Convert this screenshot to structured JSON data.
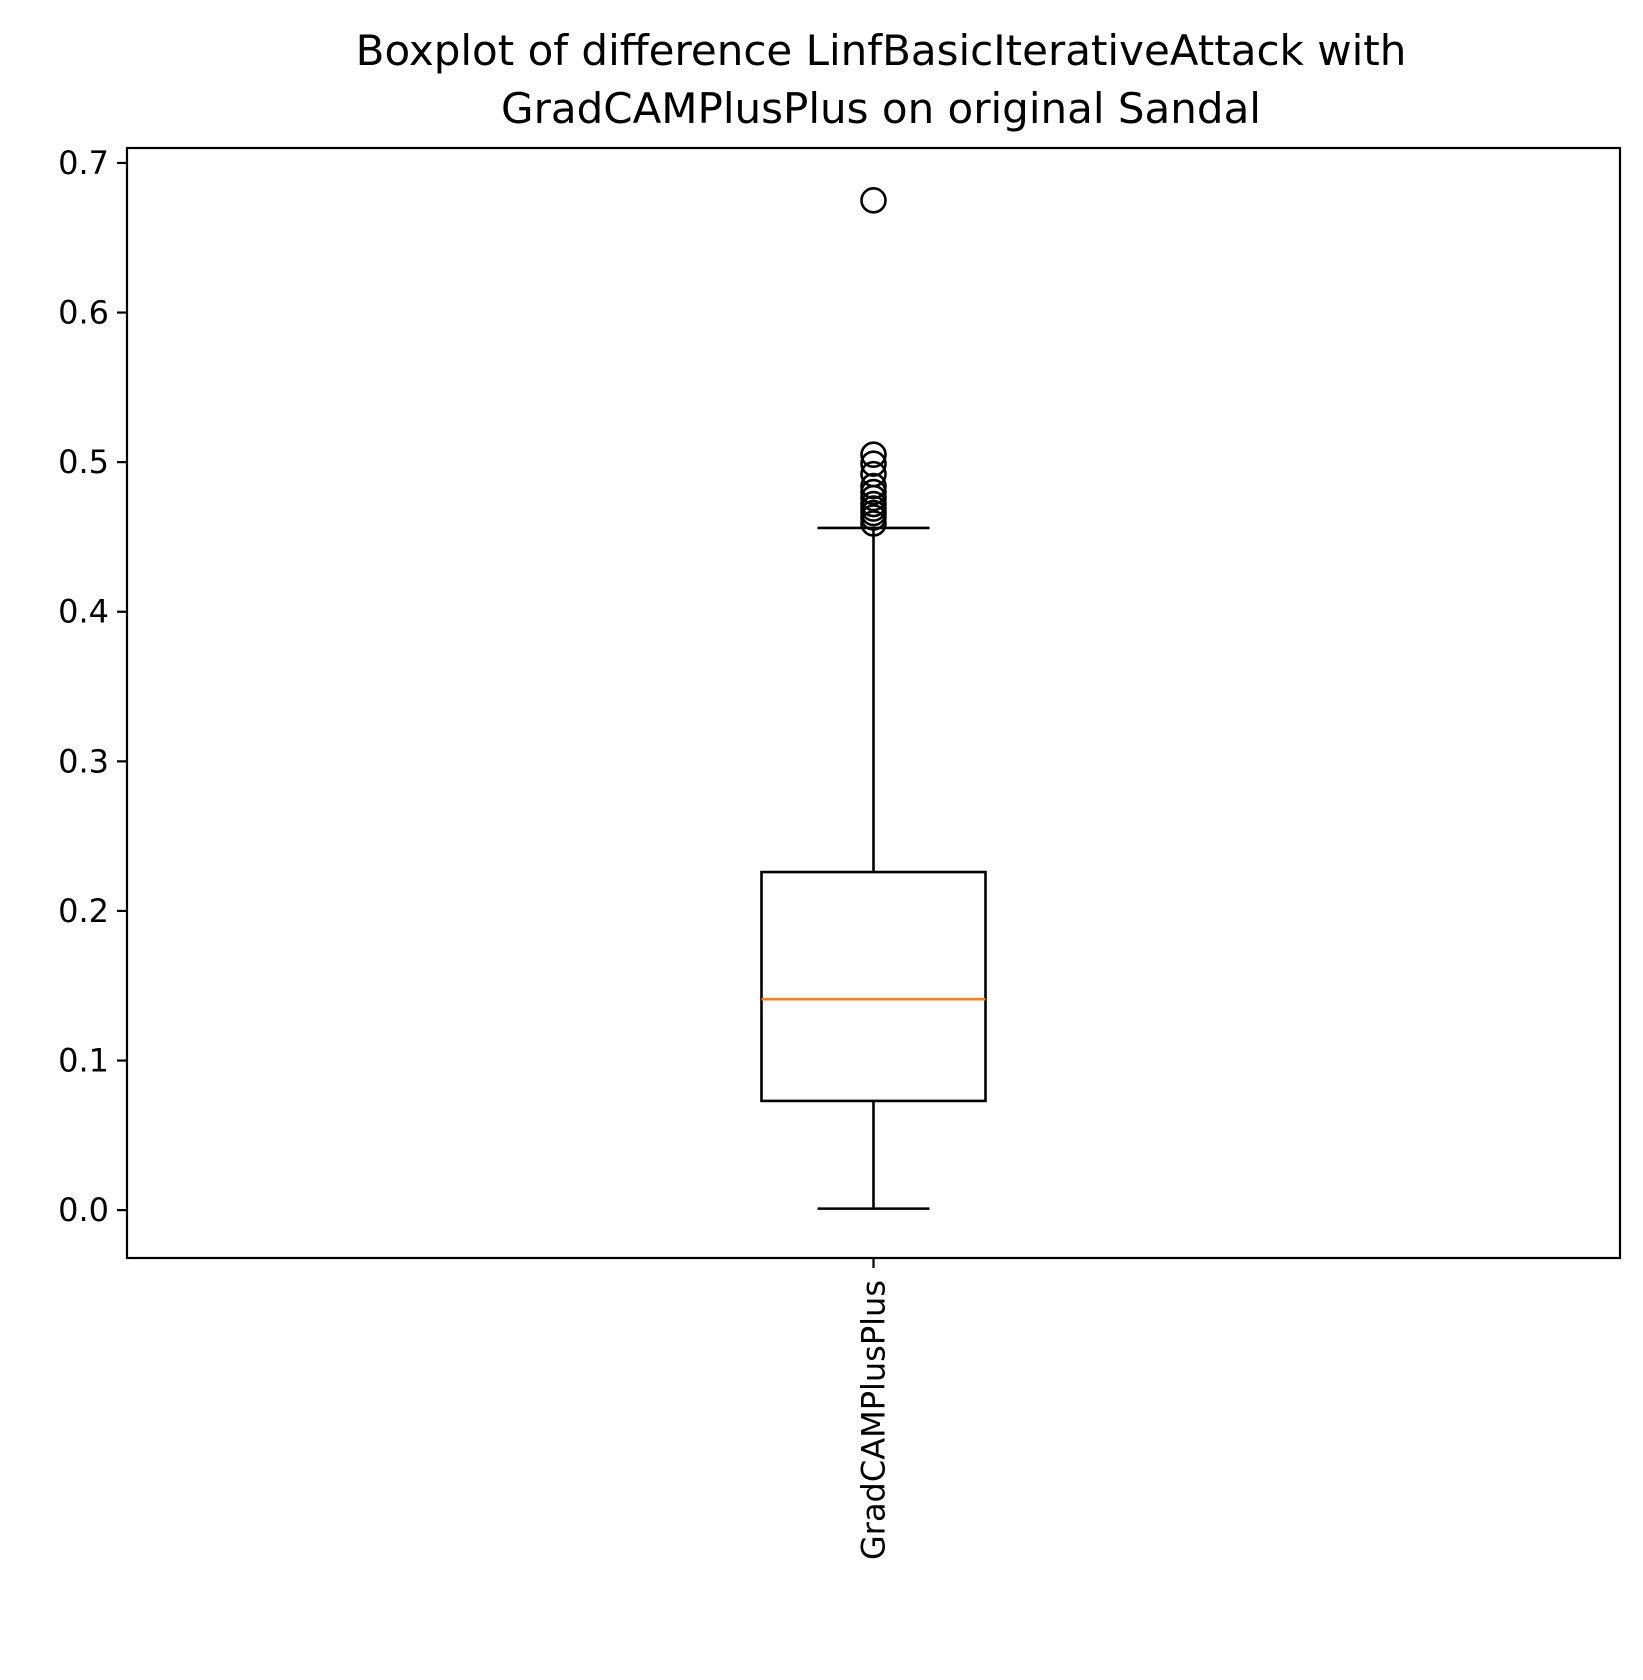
{
  "chart_data": {
    "type": "box",
    "title_lines": [
      "Boxplot of difference LinfBasicIterativeAttack with",
      "GradCAMPlusPlus on original Sandal"
    ],
    "xlabel": "",
    "ylabel": "",
    "categories": [
      "GradCAMPlusPlus"
    ],
    "yticks": [
      "0.0",
      "0.1",
      "0.2",
      "0.3",
      "0.4",
      "0.5",
      "0.6",
      "0.7"
    ],
    "ylim": [
      -0.032,
      0.71
    ],
    "grid": false,
    "boxes": [
      {
        "category": "GradCAMPlusPlus",
        "whisker_low": 0.001,
        "q1": 0.073,
        "median": 0.141,
        "q3": 0.226,
        "whisker_high": 0.456,
        "outliers": [
          0.459,
          0.463,
          0.466,
          0.469,
          0.472,
          0.476,
          0.48,
          0.484,
          0.492,
          0.499,
          0.505,
          0.675
        ]
      }
    ],
    "colors": {
      "box": "#000000",
      "median": "#ff7f0e",
      "outlier": "#000000"
    }
  }
}
